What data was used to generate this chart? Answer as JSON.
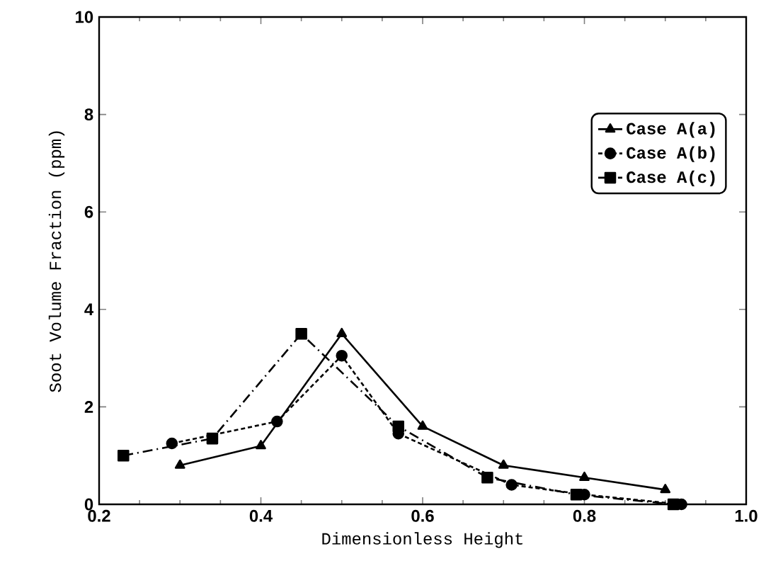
{
  "chart_data": {
    "type": "line",
    "xlabel": "Dimensionless Height",
    "ylabel": "Soot Volume Fraction (ppm)",
    "xlim": [
      0.2,
      1.0
    ],
    "ylim": [
      0,
      10
    ],
    "xticks": [
      0.2,
      0.4,
      0.6,
      0.8,
      {
        "value": 1.0,
        "label": "1.0"
      }
    ],
    "yticks": [
      0,
      2,
      4,
      6,
      8,
      10
    ],
    "legend": "right",
    "grid": false,
    "series": [
      {
        "name": "Case A(a)",
        "color": "#000000",
        "marker": "triangle",
        "line_style": "solid",
        "x": [
          0.3,
          0.4,
          0.5,
          0.6,
          0.7,
          0.8,
          0.9
        ],
        "values": [
          0.8,
          1.2,
          3.5,
          1.6,
          0.8,
          0.55,
          0.3
        ]
      },
      {
        "name": "Case A(b)",
        "color": "#000000",
        "marker": "circle",
        "line_style": "dashed",
        "x": [
          0.29,
          0.42,
          0.5,
          0.57,
          0.71,
          0.8,
          0.92
        ],
        "values": [
          1.25,
          1.7,
          3.05,
          1.45,
          0.4,
          0.2,
          0.0
        ]
      },
      {
        "name": "Case A(c)",
        "color": "#000000",
        "marker": "square",
        "line_style": "dashdot",
        "x": [
          0.23,
          0.34,
          0.45,
          0.57,
          0.68,
          0.79,
          0.91
        ],
        "values": [
          1.0,
          1.35,
          3.5,
          1.6,
          0.55,
          0.2,
          0.0
        ]
      }
    ]
  }
}
